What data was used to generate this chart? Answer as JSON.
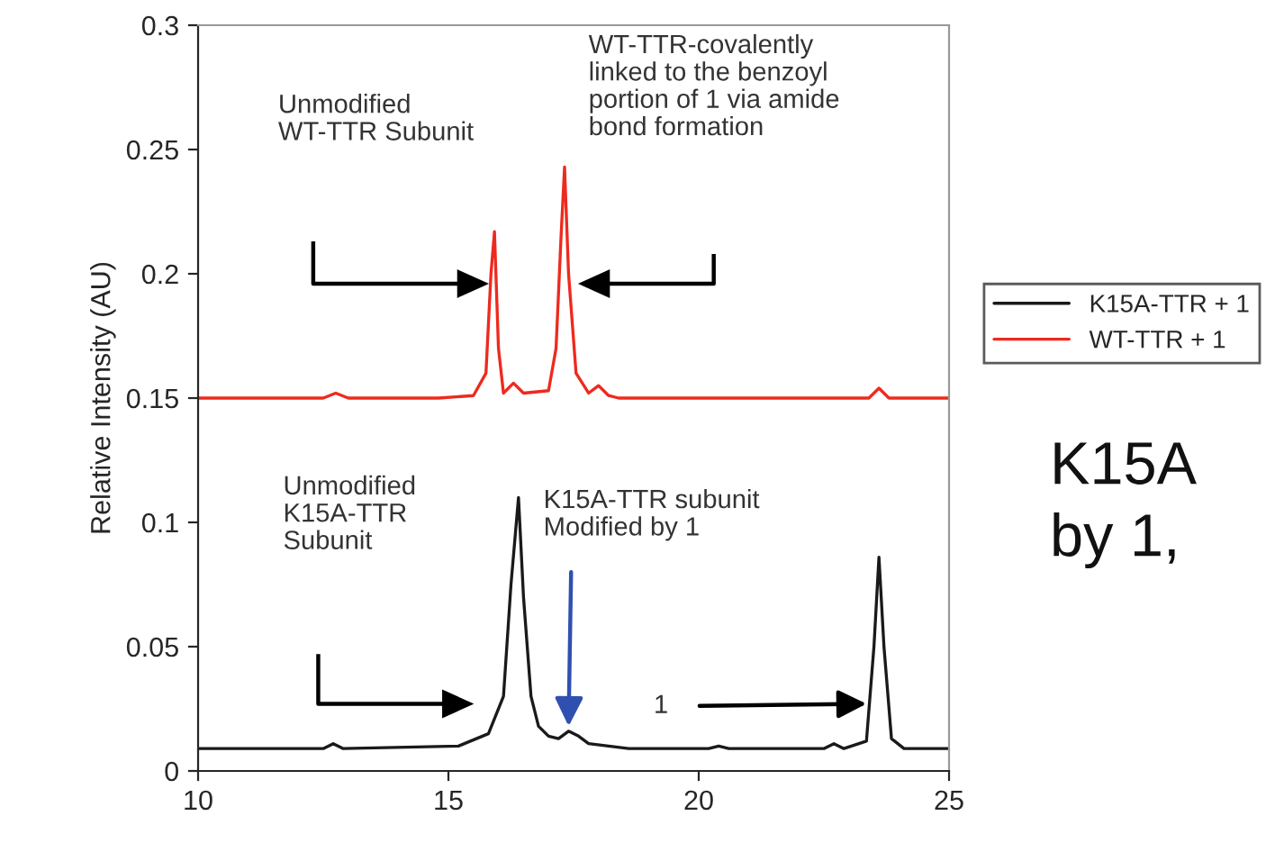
{
  "chart_data": {
    "type": "line",
    "ylabel": "Relative Intensity (AU)",
    "xlim": [
      10,
      25
    ],
    "xticks": [
      10,
      15,
      20,
      25
    ],
    "ylim": [
      0,
      0.3
    ],
    "yticks": [
      0,
      0.05,
      0.1,
      0.15,
      0.2,
      0.25,
      0.3
    ],
    "grid": false,
    "legend": "right",
    "marker": "none",
    "line_style": "solid",
    "series": [
      {
        "name": "K15A-TTR + 1",
        "color": "#1a1a1a",
        "x": [
          10,
          12.5,
          12.7,
          12.9,
          15.2,
          15.8,
          16.1,
          16.25,
          16.4,
          16.5,
          16.65,
          16.8,
          17.0,
          17.2,
          17.4,
          17.6,
          17.8,
          18.2,
          18.6,
          20.2,
          20.4,
          20.6,
          22.5,
          22.7,
          22.9,
          23.35,
          23.5,
          23.6,
          23.7,
          23.85,
          24.1,
          25
        ],
        "values": [
          0.009,
          0.009,
          0.011,
          0.009,
          0.01,
          0.015,
          0.03,
          0.075,
          0.11,
          0.07,
          0.03,
          0.018,
          0.014,
          0.013,
          0.016,
          0.014,
          0.011,
          0.01,
          0.009,
          0.009,
          0.01,
          0.009,
          0.009,
          0.011,
          0.009,
          0.012,
          0.05,
          0.086,
          0.05,
          0.013,
          0.009,
          0.009
        ]
      },
      {
        "name": "WT-TTR + 1",
        "color": "#ee2a1e",
        "x": [
          10,
          12.5,
          12.75,
          13.0,
          14.8,
          15.5,
          15.75,
          15.85,
          15.92,
          16.0,
          16.1,
          16.3,
          16.5,
          17.0,
          17.15,
          17.25,
          17.32,
          17.4,
          17.55,
          17.8,
          18.0,
          18.2,
          18.4,
          23.4,
          23.6,
          23.8,
          25
        ],
        "values": [
          0.15,
          0.15,
          0.152,
          0.15,
          0.15,
          0.151,
          0.16,
          0.2,
          0.217,
          0.17,
          0.152,
          0.156,
          0.152,
          0.153,
          0.17,
          0.215,
          0.243,
          0.2,
          0.16,
          0.152,
          0.155,
          0.151,
          0.15,
          0.15,
          0.154,
          0.15,
          0.15
        ]
      }
    ],
    "annotations": [
      "Unmodified\nWT-TTR Subunit",
      "WT-TTR-covalently\nlinked to the benzoyl\nportion of 1 via amide\nbond formation",
      "Unmodified\nK15A-TTR\nSubunit",
      {
        "text": "K15A-TTR subunit\nModified by 1",
        "x": 17.4,
        "y": 0.018
      },
      {
        "text": "1",
        "x": 23.35,
        "y": 0.027
      },
      "K15A",
      "by 1,"
    ]
  }
}
